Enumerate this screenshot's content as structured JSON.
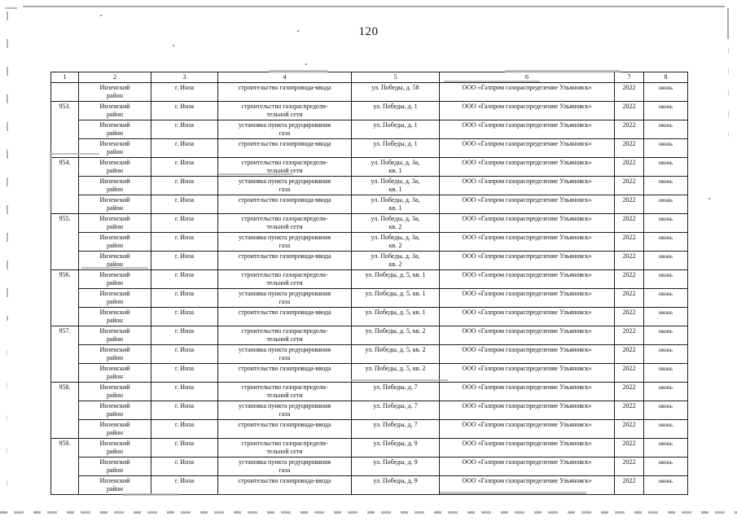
{
  "page": {
    "number": "120"
  },
  "table": {
    "header": [
      "1",
      "2",
      "3",
      "4",
      "5",
      "6",
      "7",
      "8"
    ],
    "common": {
      "district": "Инзенский\nрайон",
      "city": "г. Инза",
      "organization": "ООО «Газпром газораспределение Ульяновск»",
      "year": "2022",
      "month": "июнь"
    },
    "rows": [
      {
        "num": "",
        "num_rowspan": 1,
        "work": "строительство газопровода-ввода",
        "address": "ул. Победы, д. 58"
      },
      {
        "num": "953.",
        "num_rowspan": 3,
        "work": "строительство газораспредели-\nтельной сети",
        "address": "ул. Победы, д. 1"
      },
      {
        "work": "установка пункта редуцирования\nгаза",
        "address": "ул. Победы, д. 1"
      },
      {
        "work": "строительство газопровода-ввода",
        "address": "ул. Победы, д. 1"
      },
      {
        "num": "954.",
        "num_rowspan": 3,
        "work": "строительство газораспредели-\nтельной сети",
        "address": "ул. Победы, д. 3а,\nкв. 1"
      },
      {
        "work": "установка пункта редуцирования\nгаза",
        "address": "ул. Победы, д. 3а,\nкв. 1"
      },
      {
        "work": "строительство газопровода-ввода",
        "address": "ул. Победы, д. 3а,\nкв. 1"
      },
      {
        "num": "955.",
        "num_rowspan": 3,
        "work": "строительство газораспредели-\nтельной сети",
        "address": "ул. Победы, д. 3а,\nкв. 2"
      },
      {
        "work": "установка пункта редуцирования\nгаза",
        "address": "ул. Победы, д. 3а,\nкв. 2"
      },
      {
        "work": "строительство газопровода-ввода",
        "address": "ул. Победы, д. 3а,\nкв. 2"
      },
      {
        "num": "956.",
        "num_rowspan": 3,
        "work": "строительство газораспредели-\nтельной сети",
        "address": "ул. Победы, д. 5, кв. 1"
      },
      {
        "work": "установка пункта редуцирования\nгаза",
        "address": "ул. Победы, д. 5, кв. 1"
      },
      {
        "work": "строительство газопровода-ввода",
        "address": "ул. Победы, д. 5, кв. 1"
      },
      {
        "num": "957.",
        "num_rowspan": 3,
        "work": "строительство газораспредели-\nтельной сети",
        "address": "ул. Победы, д. 5, кв. 2"
      },
      {
        "work": "установка пункта редуцирования\nгаза",
        "address": "ул. Победы, д. 5, кв. 2"
      },
      {
        "work": "строительство газопровода-ввода",
        "address": "ул. Победы, д. 5, кв. 2"
      },
      {
        "num": "958.",
        "num_rowspan": 3,
        "work": "строительство газораспредели-\nтельной сети",
        "address": "ул. Победы, д. 7"
      },
      {
        "work": "установка пункта редуцирования\nгаза",
        "address": "ул. Победы, д. 7"
      },
      {
        "work": "строительство газопровода-ввода",
        "address": "ул. Победы, д. 7"
      },
      {
        "num": "959.",
        "num_rowspan": 3,
        "work": "строительство газораспредели-\nтельной сети",
        "address": "ул. Победы, д. 9"
      },
      {
        "work": "установка пункта редуцирования\nгаза",
        "address": "ул. Победы, д. 9"
      },
      {
        "work": "строительство газопровода-ввода",
        "address": "ул. Победы, д. 9"
      }
    ]
  }
}
